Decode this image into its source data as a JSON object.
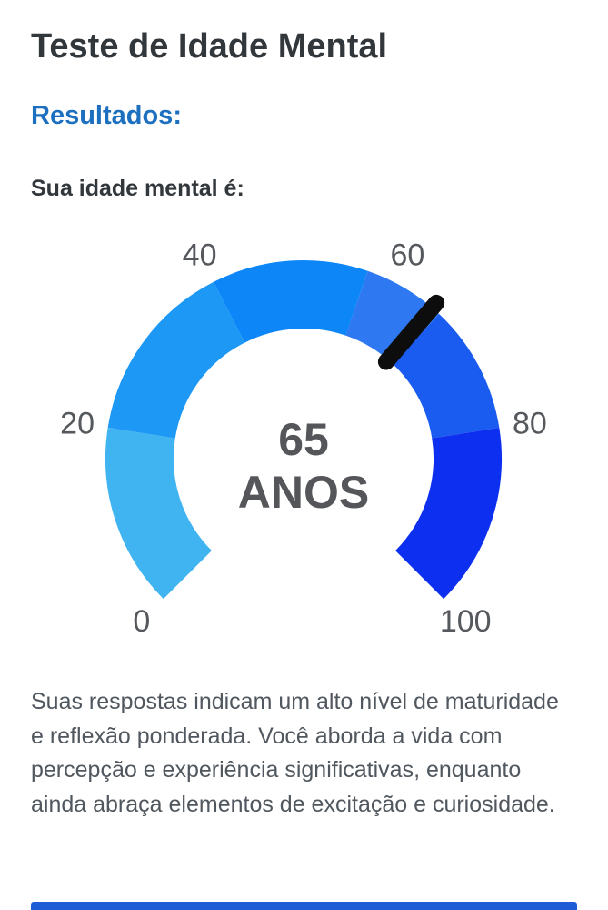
{
  "page": {
    "title": "Teste de Idade Mental",
    "results_heading": "Resultados:",
    "subheading": "Sua idade mental é:",
    "description": "Suas respostas indicam um alto nível de maturidade e reflexão ponderada. Você aborda a vida com percepção e experiência significativas, enquanto ainda abraça elementos de excitação e curiosidade.",
    "colors": {
      "title": "#32373c",
      "results_heading": "#1d70bf",
      "subheading": "#32373c",
      "body_text": "#50575e",
      "bottom_bar": "#1d5cd5"
    }
  },
  "chart_data": {
    "type": "gauge",
    "title": "Sua idade mental é:",
    "value": 65,
    "value_label": "65",
    "unit_label": "ANOS",
    "min": 0,
    "max": 100,
    "start_angle": 225,
    "end_angle": -45,
    "tick_values": [
      0,
      20,
      40,
      60,
      80,
      100
    ],
    "tick_labels": [
      "0",
      "20",
      "40",
      "60",
      "80",
      "100"
    ],
    "segments": [
      {
        "from": 0,
        "to": 20,
        "color": "#40b4f0"
      },
      {
        "from": 20,
        "to": 40,
        "color": "#1e98f5"
      },
      {
        "from": 40,
        "to": 57,
        "color": "#0d86f8"
      },
      {
        "from": 57,
        "to": 66,
        "color": "#2e79f2"
      },
      {
        "from": 66,
        "to": 80,
        "color": "#1a5bf0"
      },
      {
        "from": 80,
        "to": 100,
        "color": "#0c2ff0"
      }
    ],
    "needle_color": "#0d0d0d",
    "tick_label_color": "#55595e",
    "center_text_color": "#54565a"
  }
}
